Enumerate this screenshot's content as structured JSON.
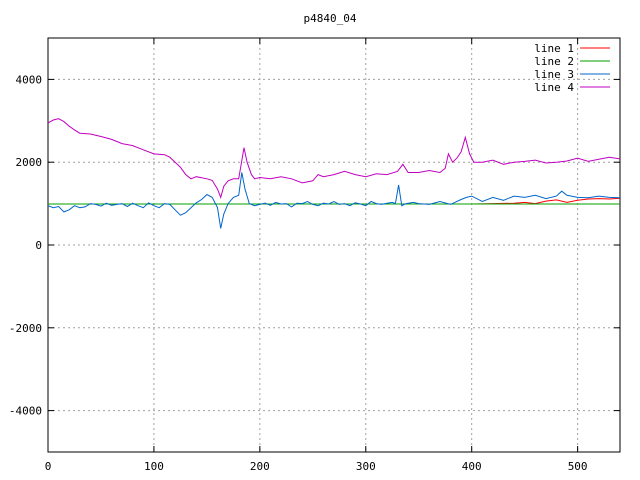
{
  "chart_data": {
    "type": "line",
    "title": "p4840_04",
    "xlabel": "",
    "ylabel": "",
    "xlim": [
      0,
      540
    ],
    "ylim": [
      -5000,
      5000
    ],
    "xticks": [
      0,
      100,
      200,
      300,
      400,
      500
    ],
    "yticks": [
      -4000,
      -2000,
      0,
      2000,
      4000
    ],
    "grid": true,
    "legend_position": "top-right",
    "series": [
      {
        "name": "line 1",
        "color": "#ff0000",
        "x": [
          0,
          100,
          200,
          300,
          400,
          420,
          440,
          450,
          460,
          470,
          480,
          490,
          500,
          510,
          520,
          530,
          540
        ],
        "y": [
          990,
          990,
          990,
          990,
          990,
          1000,
          1010,
          1030,
          1000,
          1060,
          1090,
          1030,
          1080,
          1110,
          1120,
          1110,
          1130
        ]
      },
      {
        "name": "line 2",
        "color": "#00a000",
        "x": [
          0,
          540
        ],
        "y": [
          990,
          990
        ]
      },
      {
        "name": "line 3",
        "color": "#0066cc",
        "x": [
          0,
          5,
          10,
          15,
          20,
          25,
          30,
          35,
          40,
          45,
          50,
          55,
          60,
          65,
          70,
          75,
          80,
          85,
          90,
          95,
          100,
          105,
          110,
          115,
          120,
          125,
          130,
          135,
          140,
          145,
          150,
          155,
          160,
          163,
          166,
          170,
          175,
          180,
          183,
          186,
          190,
          195,
          200,
          205,
          210,
          215,
          220,
          225,
          230,
          235,
          240,
          245,
          250,
          255,
          260,
          265,
          270,
          275,
          280,
          285,
          290,
          295,
          300,
          305,
          310,
          315,
          320,
          325,
          328,
          331,
          334,
          338,
          345,
          350,
          360,
          370,
          380,
          390,
          395,
          400,
          410,
          420,
          430,
          440,
          450,
          460,
          470,
          480,
          485,
          490,
          500,
          510,
          520,
          530,
          540
        ],
        "y": [
          950,
          900,
          930,
          800,
          850,
          950,
          900,
          920,
          1000,
          980,
          940,
          1010,
          960,
          980,
          1000,
          930,
          1010,
          950,
          900,
          1020,
          950,
          900,
          1000,
          980,
          850,
          720,
          780,
          900,
          1020,
          1100,
          1220,
          1150,
          900,
          400,
          750,
          1000,
          1150,
          1200,
          1750,
          1350,
          1000,
          950,
          980,
          1010,
          960,
          1030,
          990,
          1000,
          920,
          1010,
          1000,
          1050,
          980,
          950,
          1010,
          990,
          1050,
          980,
          1000,
          950,
          1020,
          990,
          950,
          1050,
          1000,
          980,
          1010,
          1030,
          1000,
          1450,
          950,
          1000,
          1030,
          1000,
          980,
          1050,
          980,
          1100,
          1150,
          1180,
          1050,
          1150,
          1080,
          1180,
          1150,
          1200,
          1120,
          1180,
          1300,
          1200,
          1150,
          1140,
          1180,
          1150,
          1140
        ]
      },
      {
        "name": "line 4",
        "color": "#c000c0",
        "x": [
          0,
          5,
          10,
          15,
          20,
          25,
          30,
          40,
          50,
          60,
          70,
          80,
          90,
          100,
          110,
          115,
          120,
          125,
          130,
          135,
          140,
          150,
          155,
          160,
          163,
          166,
          170,
          175,
          180,
          185,
          188,
          192,
          195,
          200,
          210,
          220,
          230,
          240,
          250,
          255,
          260,
          270,
          280,
          290,
          300,
          310,
          320,
          330,
          335,
          340,
          350,
          360,
          370,
          375,
          378,
          382,
          386,
          390,
          394,
          398,
          402,
          410,
          420,
          430,
          440,
          450,
          460,
          470,
          480,
          490,
          500,
          510,
          520,
          530,
          540
        ],
        "y": [
          2950,
          3020,
          3050,
          2980,
          2870,
          2780,
          2700,
          2680,
          2620,
          2550,
          2450,
          2400,
          2300,
          2200,
          2180,
          2120,
          2000,
          1880,
          1700,
          1600,
          1650,
          1600,
          1560,
          1350,
          1150,
          1420,
          1550,
          1600,
          1600,
          2350,
          2000,
          1700,
          1600,
          1630,
          1600,
          1650,
          1600,
          1500,
          1550,
          1700,
          1650,
          1700,
          1780,
          1700,
          1650,
          1720,
          1700,
          1780,
          1950,
          1750,
          1750,
          1800,
          1750,
          1850,
          2200,
          2000,
          2100,
          2250,
          2600,
          2200,
          2000,
          2000,
          2050,
          1950,
          2000,
          2020,
          2050,
          1980,
          2000,
          2030,
          2100,
          2020,
          2070,
          2120,
          2080
        ]
      }
    ]
  }
}
